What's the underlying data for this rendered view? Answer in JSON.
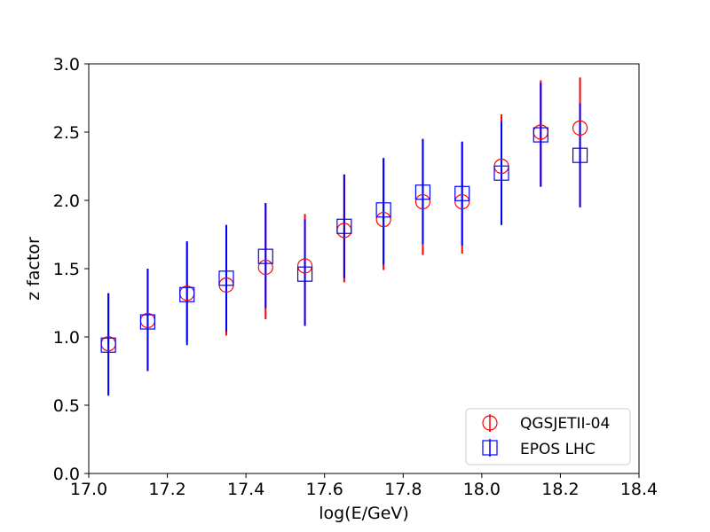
{
  "chart_data": {
    "type": "scatter",
    "title": "",
    "xlabel": "log(E/GeV)",
    "ylabel": "z factor",
    "xlim": [
      17.0,
      18.4
    ],
    "ylim": [
      0.0,
      3.0
    ],
    "xticks": [
      "17.0",
      "17.2",
      "17.4",
      "17.6",
      "17.8",
      "18.0",
      "18.2",
      "18.4"
    ],
    "yticks": [
      "0.0",
      "0.5",
      "1.0",
      "1.5",
      "2.0",
      "2.5",
      "3.0"
    ],
    "grid": false,
    "legend_position": "bottom-right",
    "series": [
      {
        "name": "QGSJETII-04",
        "marker": "circle",
        "color": "#ff0000",
        "x": [
          17.05,
          17.15,
          17.25,
          17.35,
          17.45,
          17.55,
          17.65,
          17.75,
          17.85,
          17.95,
          18.05,
          18.15,
          18.25
        ],
        "y": [
          0.95,
          1.12,
          1.32,
          1.38,
          1.51,
          1.52,
          1.78,
          1.86,
          1.99,
          1.99,
          2.25,
          2.5,
          2.53
        ],
        "err_low": [
          0.95,
          0.75,
          0.96,
          1.01,
          1.13,
          1.09,
          1.4,
          1.49,
          1.6,
          1.61,
          1.82,
          2.1,
          1.95
        ],
        "err_high": [
          1.32,
          1.5,
          1.7,
          1.82,
          1.98,
          1.9,
          2.19,
          2.31,
          2.45,
          2.43,
          2.63,
          2.88,
          2.9
        ]
      },
      {
        "name": "EPOS LHC",
        "marker": "square",
        "color": "#0000ff",
        "x": [
          17.05,
          17.15,
          17.25,
          17.35,
          17.45,
          17.55,
          17.65,
          17.75,
          17.85,
          17.95,
          18.05,
          18.15,
          18.25
        ],
        "y": [
          0.94,
          1.11,
          1.31,
          1.43,
          1.59,
          1.46,
          1.81,
          1.93,
          2.06,
          2.05,
          2.2,
          2.48,
          2.33
        ],
        "err_low": [
          0.57,
          0.75,
          0.94,
          1.04,
          1.21,
          1.08,
          1.43,
          1.53,
          1.68,
          1.67,
          1.82,
          2.1,
          1.95
        ],
        "err_high": [
          1.32,
          1.5,
          1.7,
          1.82,
          1.98,
          1.86,
          2.19,
          2.31,
          2.45,
          2.43,
          2.58,
          2.86,
          2.71
        ]
      }
    ]
  }
}
